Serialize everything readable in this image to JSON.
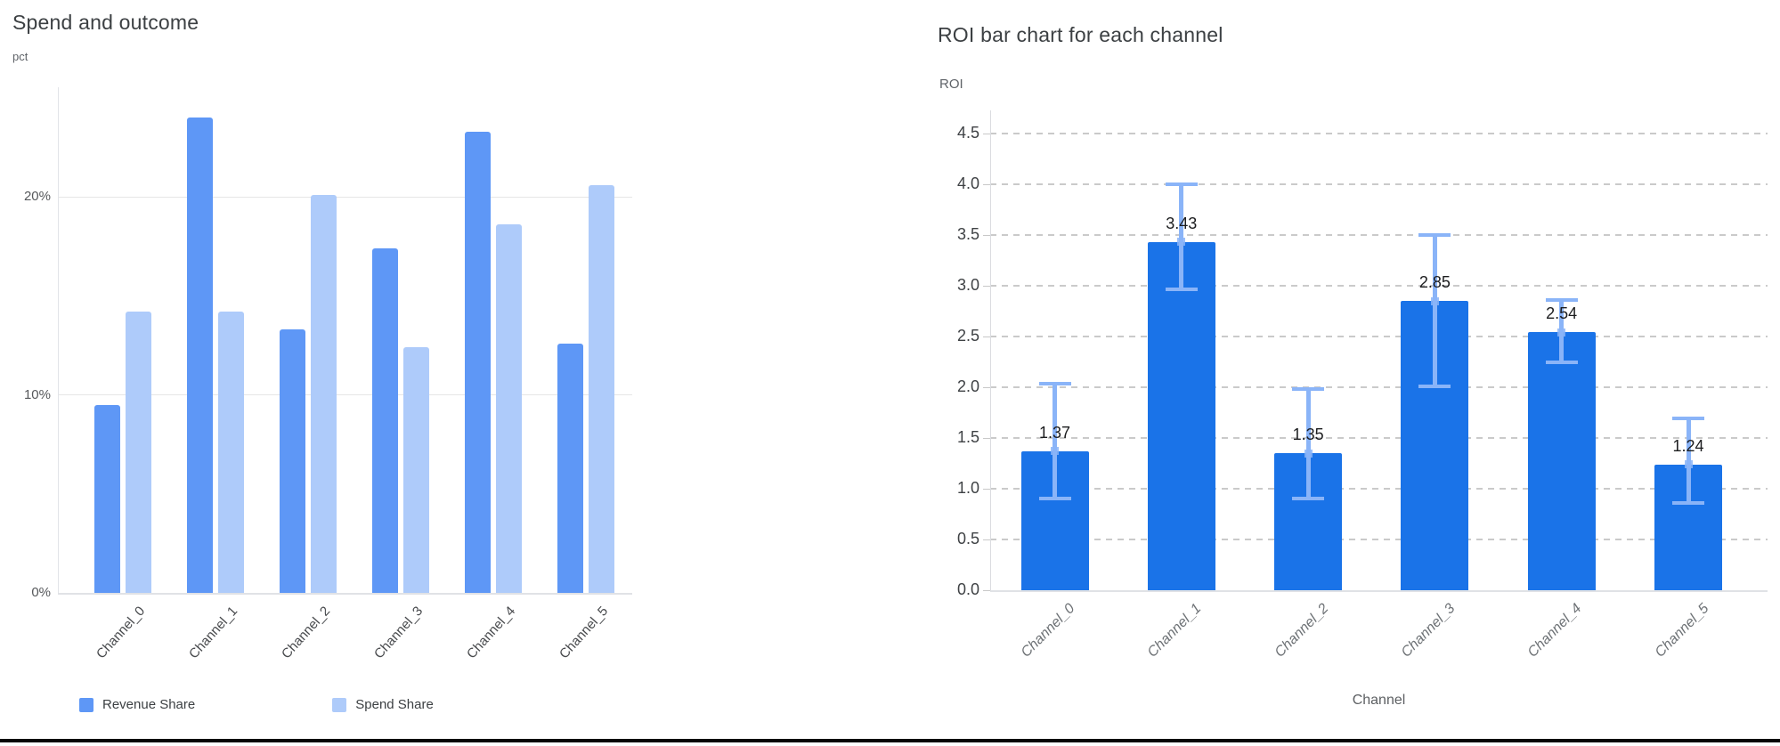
{
  "chart_data": [
    {
      "type": "bar",
      "title": "Spend and outcome",
      "y_unit": "pct",
      "categories": [
        "Channel_0",
        "Channel_1",
        "Channel_2",
        "Channel_3",
        "Channel_4",
        "Channel_5"
      ],
      "series": [
        {
          "name": "Revenue Share",
          "color": "#5e97f6",
          "values": [
            9.5,
            24.0,
            13.3,
            17.4,
            23.3,
            12.6
          ]
        },
        {
          "name": "Spend Share",
          "color": "#aecbfa",
          "values": [
            14.2,
            14.2,
            20.1,
            12.4,
            18.6,
            20.6
          ]
        }
      ],
      "y_ticks": [
        {
          "label": "0%",
          "value": 0
        },
        {
          "label": "10%",
          "value": 10
        },
        {
          "label": "20%",
          "value": 20
        }
      ],
      "ylim": [
        0,
        25.5
      ],
      "grid": "solid-horizontal",
      "legend_position": "bottom-left"
    },
    {
      "type": "bar",
      "title": "ROI bar chart for each channel",
      "ylabel": "ROI",
      "xlabel": "Channel",
      "categories": [
        "Channel_0",
        "Channel_1",
        "Channel_2",
        "Channel_3",
        "Channel_4",
        "Channel_5"
      ],
      "values": [
        1.37,
        3.43,
        1.35,
        2.85,
        2.54,
        1.24
      ],
      "value_labels": [
        "1.37",
        "3.43",
        "1.35",
        "2.85",
        "2.54",
        "1.24"
      ],
      "error_low": [
        0.89,
        2.95,
        0.89,
        1.99,
        2.23,
        0.84
      ],
      "error_high": [
        2.05,
        4.02,
        2.0,
        3.52,
        2.88,
        1.71
      ],
      "bar_color": "#1a73e8",
      "error_color": "#8ab4f8",
      "y_ticks": [
        {
          "label": "0.0",
          "value": 0.0
        },
        {
          "label": "0.5",
          "value": 0.5
        },
        {
          "label": "1.0",
          "value": 1.0
        },
        {
          "label": "1.5",
          "value": 1.5
        },
        {
          "label": "2.0",
          "value": 2.0
        },
        {
          "label": "2.5",
          "value": 2.5
        },
        {
          "label": "3.0",
          "value": 3.0
        },
        {
          "label": "3.5",
          "value": 3.5
        },
        {
          "label": "4.0",
          "value": 4.0
        },
        {
          "label": "4.5",
          "value": 4.5
        }
      ],
      "ylim": [
        0,
        4.7
      ],
      "grid": "dashed-horizontal",
      "legend_position": "none"
    }
  ]
}
